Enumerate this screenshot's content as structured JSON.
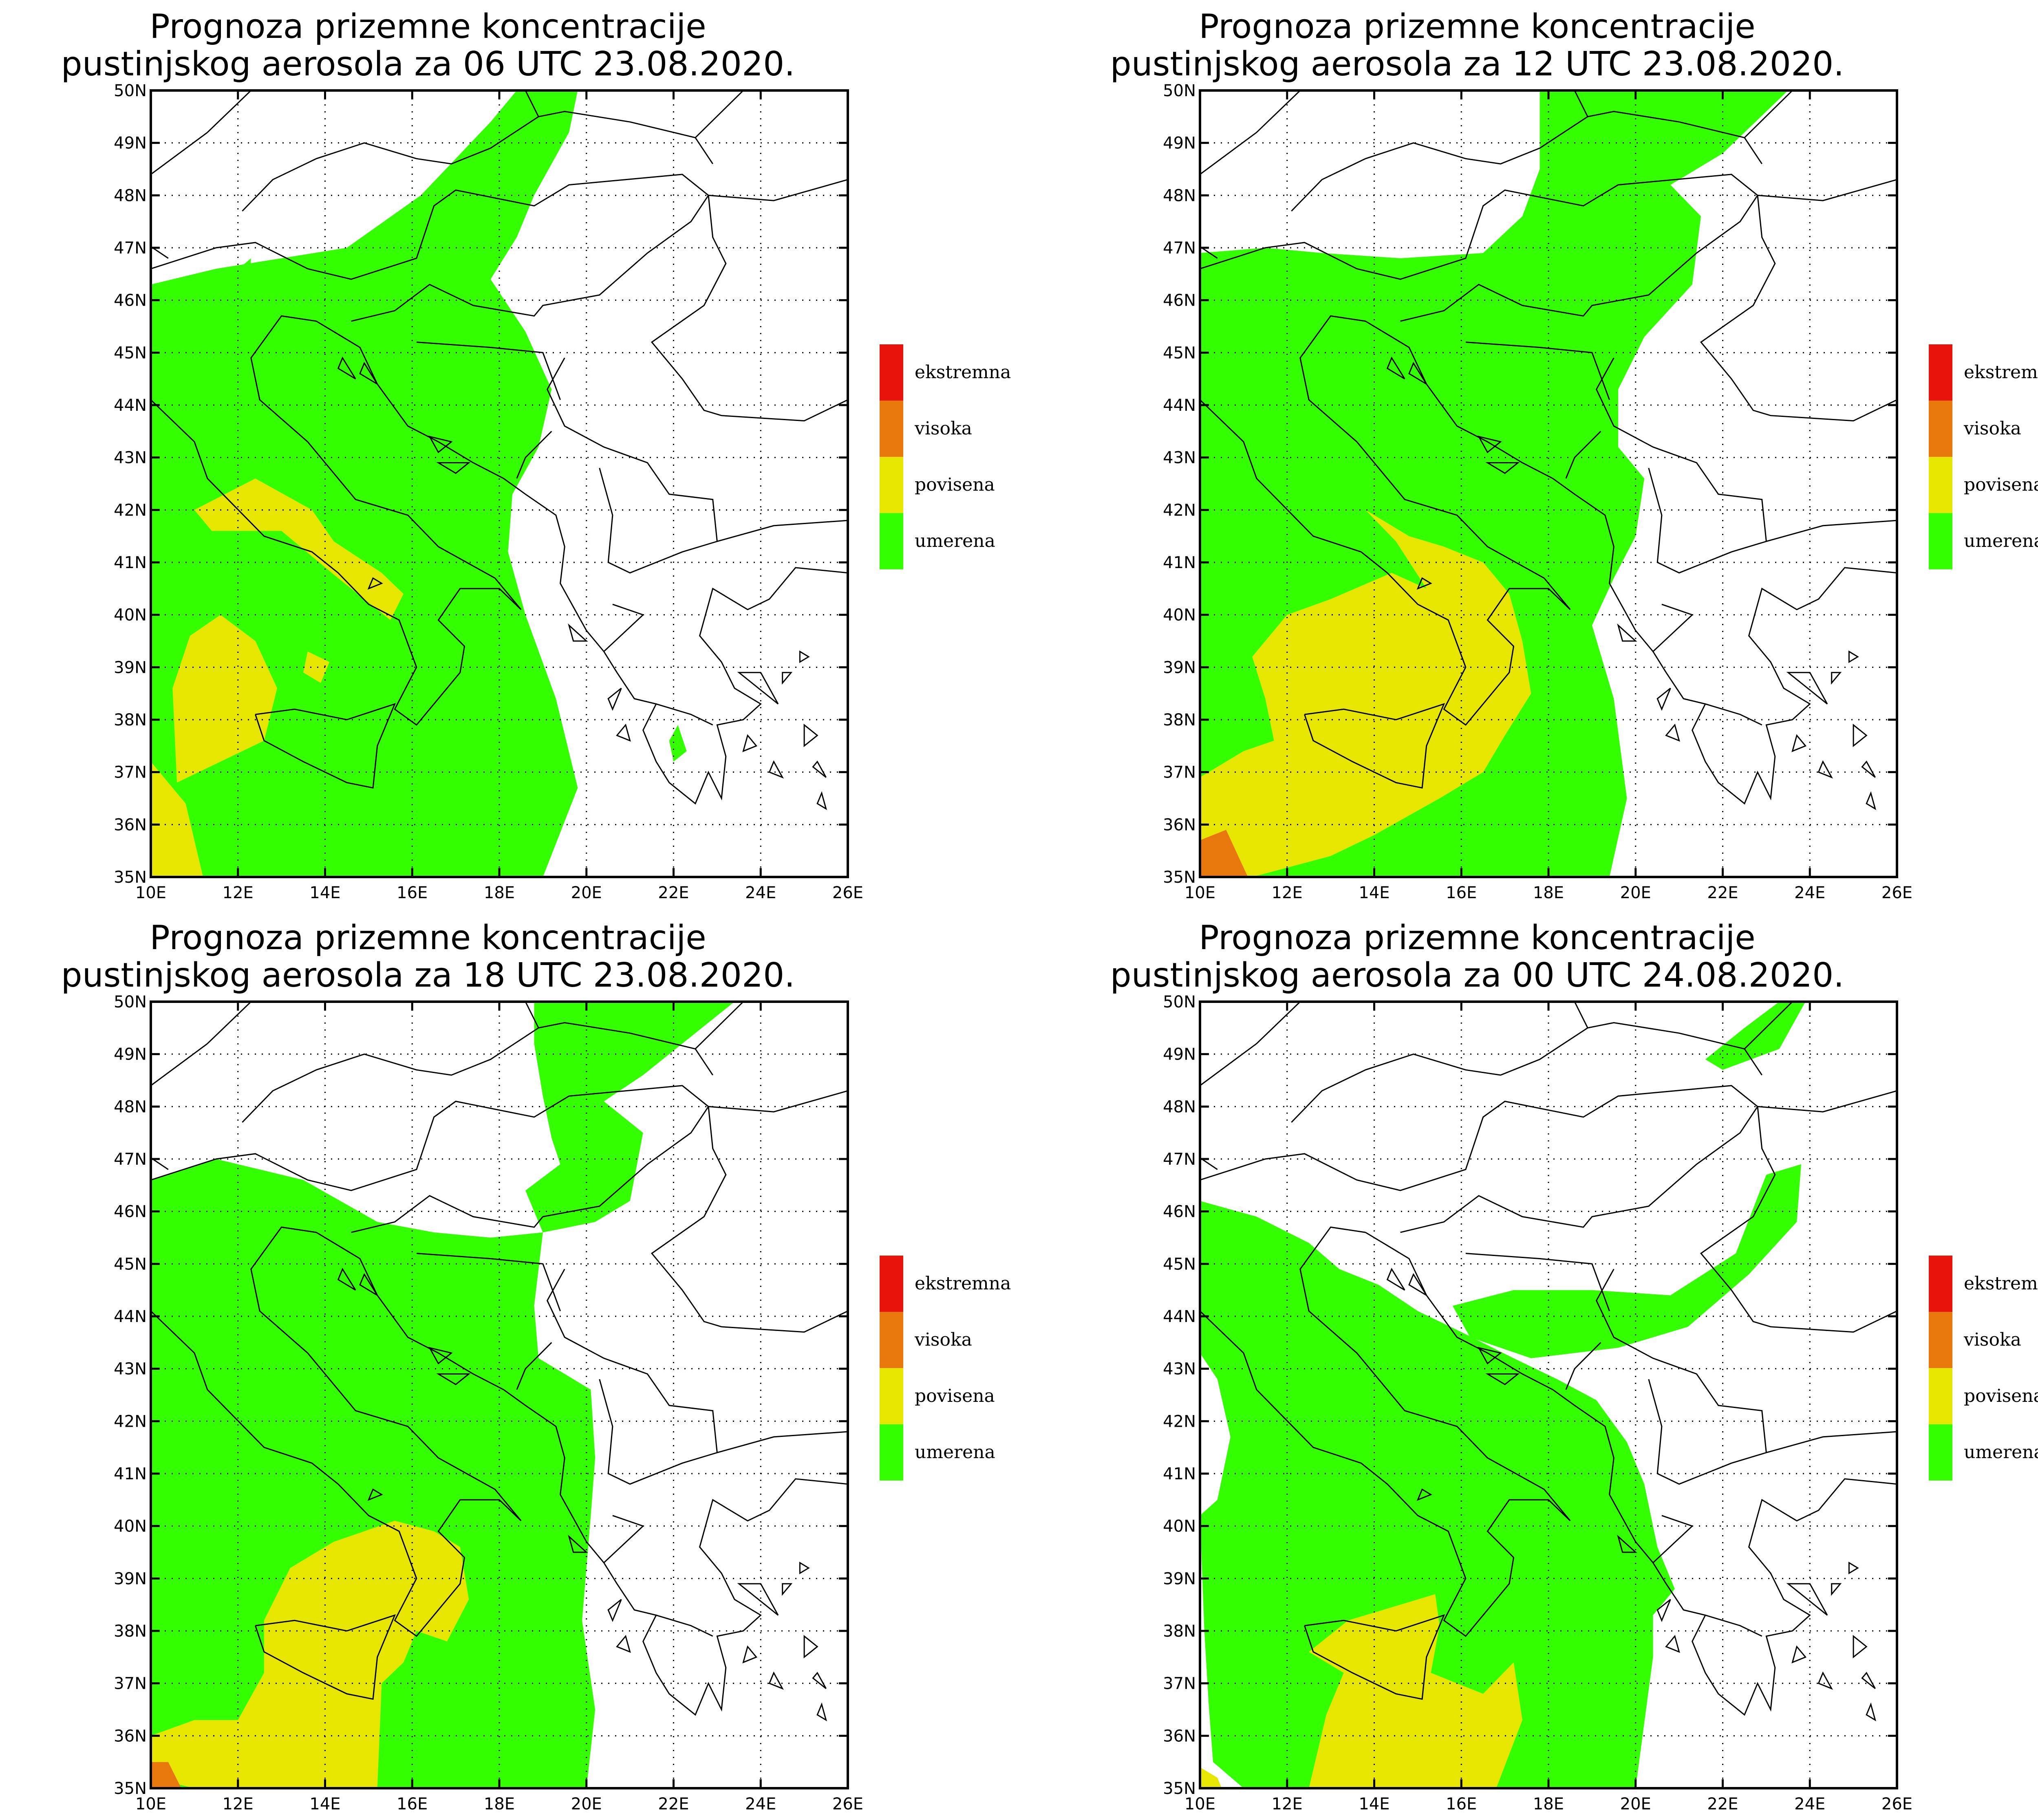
{
  "legend": {
    "items": [
      {
        "label": "ekstremna",
        "color": "#e8140c"
      },
      {
        "label": "visoka",
        "color": "#e8780c"
      },
      {
        "label": "povisena",
        "color": "#e6e600"
      },
      {
        "label": "umerena",
        "color": "#33ff00"
      }
    ]
  },
  "axes": {
    "lon_labels": [
      "10E",
      "12E",
      "14E",
      "16E",
      "18E",
      "20E",
      "22E",
      "24E",
      "26E"
    ],
    "lat_labels": [
      "35N",
      "36N",
      "37N",
      "38N",
      "39N",
      "40N",
      "41N",
      "42N",
      "43N",
      "44N",
      "45N",
      "46N",
      "47N",
      "48N",
      "49N",
      "50N"
    ]
  },
  "panels": [
    {
      "title_line1": "Prognoza prizemne koncentracije",
      "title_line2": "pustinjskog aerosola za 06 UTC 23.08.2020."
    },
    {
      "title_line1": "Prognoza prizemne koncentracije",
      "title_line2": "pustinjskog aerosola za 12 UTC 23.08.2020."
    },
    {
      "title_line1": "Prognoza prizemne koncentracije",
      "title_line2": "pustinjskog aerosola za 18 UTC 23.08.2020."
    },
    {
      "title_line1": "Prognoza prizemne koncentracije",
      "title_line2": "pustinjskog aerosola za 00 UTC 24.08.2020."
    }
  ]
}
